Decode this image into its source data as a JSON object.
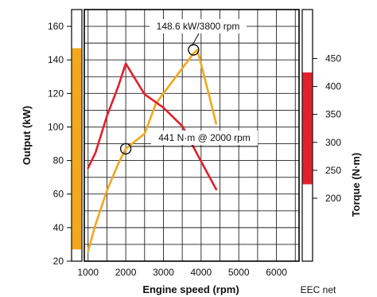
{
  "chart_data": {
    "type": "line",
    "xlabel": "Engine speed (rpm)",
    "ylabel": "Output (kW)",
    "y2label": "Torque (N·m)",
    "note": "EEC net",
    "xlim": [
      900,
      6600
    ],
    "ylim": [
      20,
      170
    ],
    "y2lim": [
      87.5,
      537.5
    ],
    "x_ticks": [
      1000,
      2000,
      3000,
      4000,
      5000,
      6000
    ],
    "y_ticks": [
      20,
      40,
      60,
      80,
      100,
      120,
      140,
      160
    ],
    "y2_ticks": [
      200,
      250,
      300,
      350,
      400,
      450
    ],
    "grid": true,
    "series": [
      {
        "axis": "left",
        "color": "#f2a71c",
        "x": [
          1000,
          1200,
          1500,
          1800,
          2000,
          2500,
          2800,
          3500,
          3800,
          3900,
          4200,
          4400
        ],
        "y": [
          26,
          42,
          62,
          78,
          87,
          96,
          114,
          135,
          144,
          146,
          120,
          102
        ]
      },
      {
        "axis": "right",
        "color": "#e2202c",
        "x": [
          1000,
          1200,
          1500,
          1800,
          2000,
          2500,
          3000,
          3500,
          4000,
          4400
        ],
        "y": [
          254,
          282,
          347,
          400,
          441,
          386,
          362,
          329,
          266,
          216
        ]
      }
    ],
    "annotations": [
      {
        "text": "148.6 kW/3800 rpm",
        "x": 3800,
        "y": 146
      },
      {
        "text": "441 N·m @ 2000 rpm",
        "x": 2000,
        "y": 87
      }
    ],
    "range_bars": [
      {
        "axis": "left",
        "color": "#f2a71c",
        "from": 27,
        "to": 147
      },
      {
        "axis": "right",
        "color": "#e2202c",
        "from": 225,
        "to": 425
      }
    ]
  }
}
